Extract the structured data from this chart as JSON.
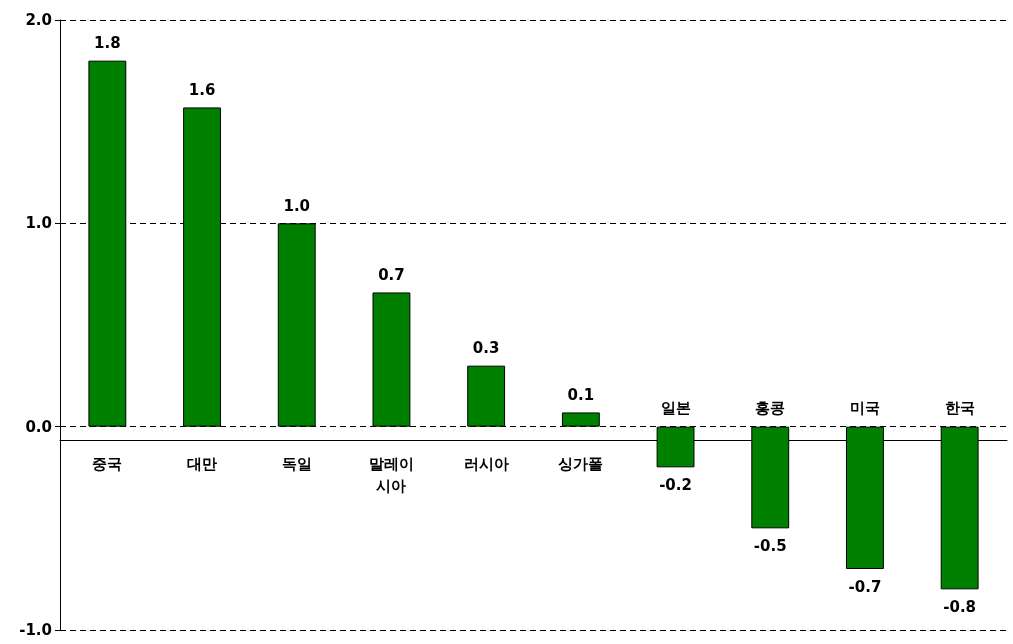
{
  "chart_data": {
    "type": "bar",
    "categories": [
      "중국",
      "대만",
      "독일",
      "말레이시아",
      "러시아",
      "싱가폴",
      "일본",
      "홍콩",
      "미국",
      "한국"
    ],
    "values": [
      1.8,
      1.57,
      1.0,
      0.66,
      0.3,
      0.07,
      -0.2,
      -0.5,
      -0.7,
      -0.8
    ],
    "value_labels": [
      "1.8",
      "1.6",
      "1.0",
      "0.7",
      "0.3",
      "0.1",
      "-0.2",
      "-0.5",
      "-0.7",
      "-0.8"
    ],
    "color": "#008000",
    "ylim": [
      -1,
      2
    ],
    "yticks": [
      {
        "value": -1,
        "label": "-1.0"
      },
      {
        "value": 0,
        "label": "0.0"
      },
      {
        "value": 1,
        "label": "1.0"
      },
      {
        "value": 2,
        "label": "2.0"
      }
    ],
    "grid": "y"
  }
}
